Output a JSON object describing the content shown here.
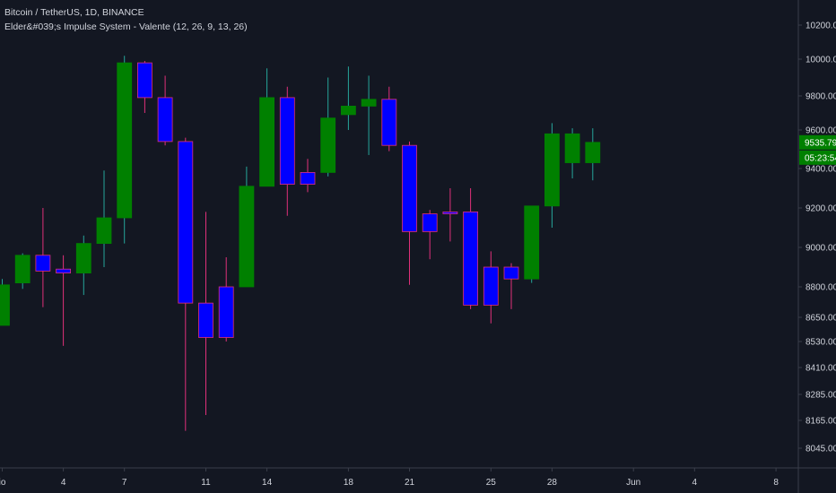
{
  "legend": {
    "symbol": "Bitcoin / TetherUS, 1D, BINANCE",
    "indicator": "Elder&#039;s Impulse System - Valente (12, 26, 9, 13, 26)"
  },
  "colors": {
    "background": "#131722",
    "up": "#008000",
    "down": "#0000ff",
    "wick_up": "#26a69a",
    "wick_down": "#e0307a",
    "axis_line": "#3a3e4a",
    "badge": "#008000"
  },
  "price_badge": {
    "price": "9535.79",
    "countdown": "05:23:54"
  },
  "chart_data": {
    "type": "candlestick",
    "title": "Bitcoin / TetherUS, 1D, BINANCE",
    "xlabel": "",
    "ylabel": "",
    "y_ticks": [
      {
        "value": 10200,
        "label": "10200.00"
      },
      {
        "value": 10000,
        "label": "10000.00"
      },
      {
        "value": 9800,
        "label": "9800.00"
      },
      {
        "value": 9600,
        "label": "9600.00"
      },
      {
        "value": 9400,
        "label": "9400.00"
      },
      {
        "value": 9200,
        "label": "9200.00"
      },
      {
        "value": 9000,
        "label": "9000.00"
      },
      {
        "value": 8800,
        "label": "8800.00"
      },
      {
        "value": 8650,
        "label": "8650.00"
      },
      {
        "value": 8530,
        "label": "8530.00"
      },
      {
        "value": 8410,
        "label": "8410.00"
      },
      {
        "value": 8285,
        "label": "8285.00"
      },
      {
        "value": 8165,
        "label": "8165.00"
      },
      {
        "value": 8045,
        "label": "8045.00"
      }
    ],
    "x_ticks": [
      {
        "index": -0.3,
        "label": "io"
      },
      {
        "index": 2.7,
        "label": "4"
      },
      {
        "index": 5.7,
        "label": "7"
      },
      {
        "index": 9.7,
        "label": "11"
      },
      {
        "index": 12.7,
        "label": "14"
      },
      {
        "index": 16.7,
        "label": "18"
      },
      {
        "index": 19.7,
        "label": "21"
      },
      {
        "index": 23.7,
        "label": "25"
      },
      {
        "index": 26.7,
        "label": "28"
      },
      {
        "index": 30.7,
        "label": "Jun"
      },
      {
        "index": 33.7,
        "label": "4"
      },
      {
        "index": 37.7,
        "label": "8"
      }
    ],
    "candles": [
      {
        "o": 8610,
        "h": 8840,
        "l": 8610,
        "c": 8810,
        "dir": "up"
      },
      {
        "o": 8820,
        "h": 8970,
        "l": 8790,
        "c": 8960,
        "dir": "up"
      },
      {
        "o": 8960,
        "h": 9200,
        "l": 8700,
        "c": 8880,
        "dir": "down"
      },
      {
        "o": 8890,
        "h": 8960,
        "l": 8510,
        "c": 8870,
        "dir": "down"
      },
      {
        "o": 8870,
        "h": 9060,
        "l": 8760,
        "c": 9020,
        "dir": "up"
      },
      {
        "o": 9020,
        "h": 9390,
        "l": 8900,
        "c": 9150,
        "dir": "up"
      },
      {
        "o": 9150,
        "h": 10020,
        "l": 9020,
        "c": 9980,
        "dir": "up"
      },
      {
        "o": 9980,
        "h": 9990,
        "l": 9700,
        "c": 9790,
        "dir": "down"
      },
      {
        "o": 9790,
        "h": 9910,
        "l": 9520,
        "c": 9540,
        "dir": "down"
      },
      {
        "o": 9540,
        "h": 9560,
        "l": 8120,
        "c": 8720,
        "dir": "down"
      },
      {
        "o": 8720,
        "h": 9180,
        "l": 8190,
        "c": 8550,
        "dir": "down"
      },
      {
        "o": 8550,
        "h": 8950,
        "l": 8530,
        "c": 8800,
        "dir": "down"
      },
      {
        "o": 8800,
        "h": 9410,
        "l": 8800,
        "c": 9310,
        "dir": "up"
      },
      {
        "o": 9310,
        "h": 9950,
        "l": 9310,
        "c": 9790,
        "dir": "up"
      },
      {
        "o": 9790,
        "h": 9850,
        "l": 9160,
        "c": 9320,
        "dir": "down"
      },
      {
        "o": 9380,
        "h": 9450,
        "l": 9280,
        "c": 9320,
        "dir": "down"
      },
      {
        "o": 9380,
        "h": 9900,
        "l": 9360,
        "c": 9670,
        "dir": "up"
      },
      {
        "o": 9690,
        "h": 9960,
        "l": 9600,
        "c": 9740,
        "dir": "up"
      },
      {
        "o": 9740,
        "h": 9910,
        "l": 9470,
        "c": 9780,
        "dir": "up"
      },
      {
        "o": 9780,
        "h": 9850,
        "l": 9490,
        "c": 9520,
        "dir": "down"
      },
      {
        "o": 9520,
        "h": 9540,
        "l": 8810,
        "c": 9080,
        "dir": "down"
      },
      {
        "o": 9170,
        "h": 9190,
        "l": 8940,
        "c": 9080,
        "dir": "down"
      },
      {
        "o": 9170,
        "h": 9300,
        "l": 9030,
        "c": 9180,
        "dir": "down"
      },
      {
        "o": 9180,
        "h": 9300,
        "l": 8690,
        "c": 8710,
        "dir": "down"
      },
      {
        "o": 8900,
        "h": 8980,
        "l": 8620,
        "c": 8710,
        "dir": "down"
      },
      {
        "o": 8900,
        "h": 8920,
        "l": 8690,
        "c": 8840,
        "dir": "down"
      },
      {
        "o": 8840,
        "h": 9210,
        "l": 8820,
        "c": 9210,
        "dir": "up"
      },
      {
        "o": 9210,
        "h": 9640,
        "l": 9100,
        "c": 9580,
        "dir": "up"
      },
      {
        "o": 9580,
        "h": 9610,
        "l": 9350,
        "c": 9430,
        "dir": "up"
      },
      {
        "o": 9430,
        "h": 9610,
        "l": 9340,
        "c": 9535.79,
        "dir": "up"
      }
    ],
    "ylim": [
      7950,
      10300
    ],
    "grid": false,
    "legend_position": "top-left"
  }
}
